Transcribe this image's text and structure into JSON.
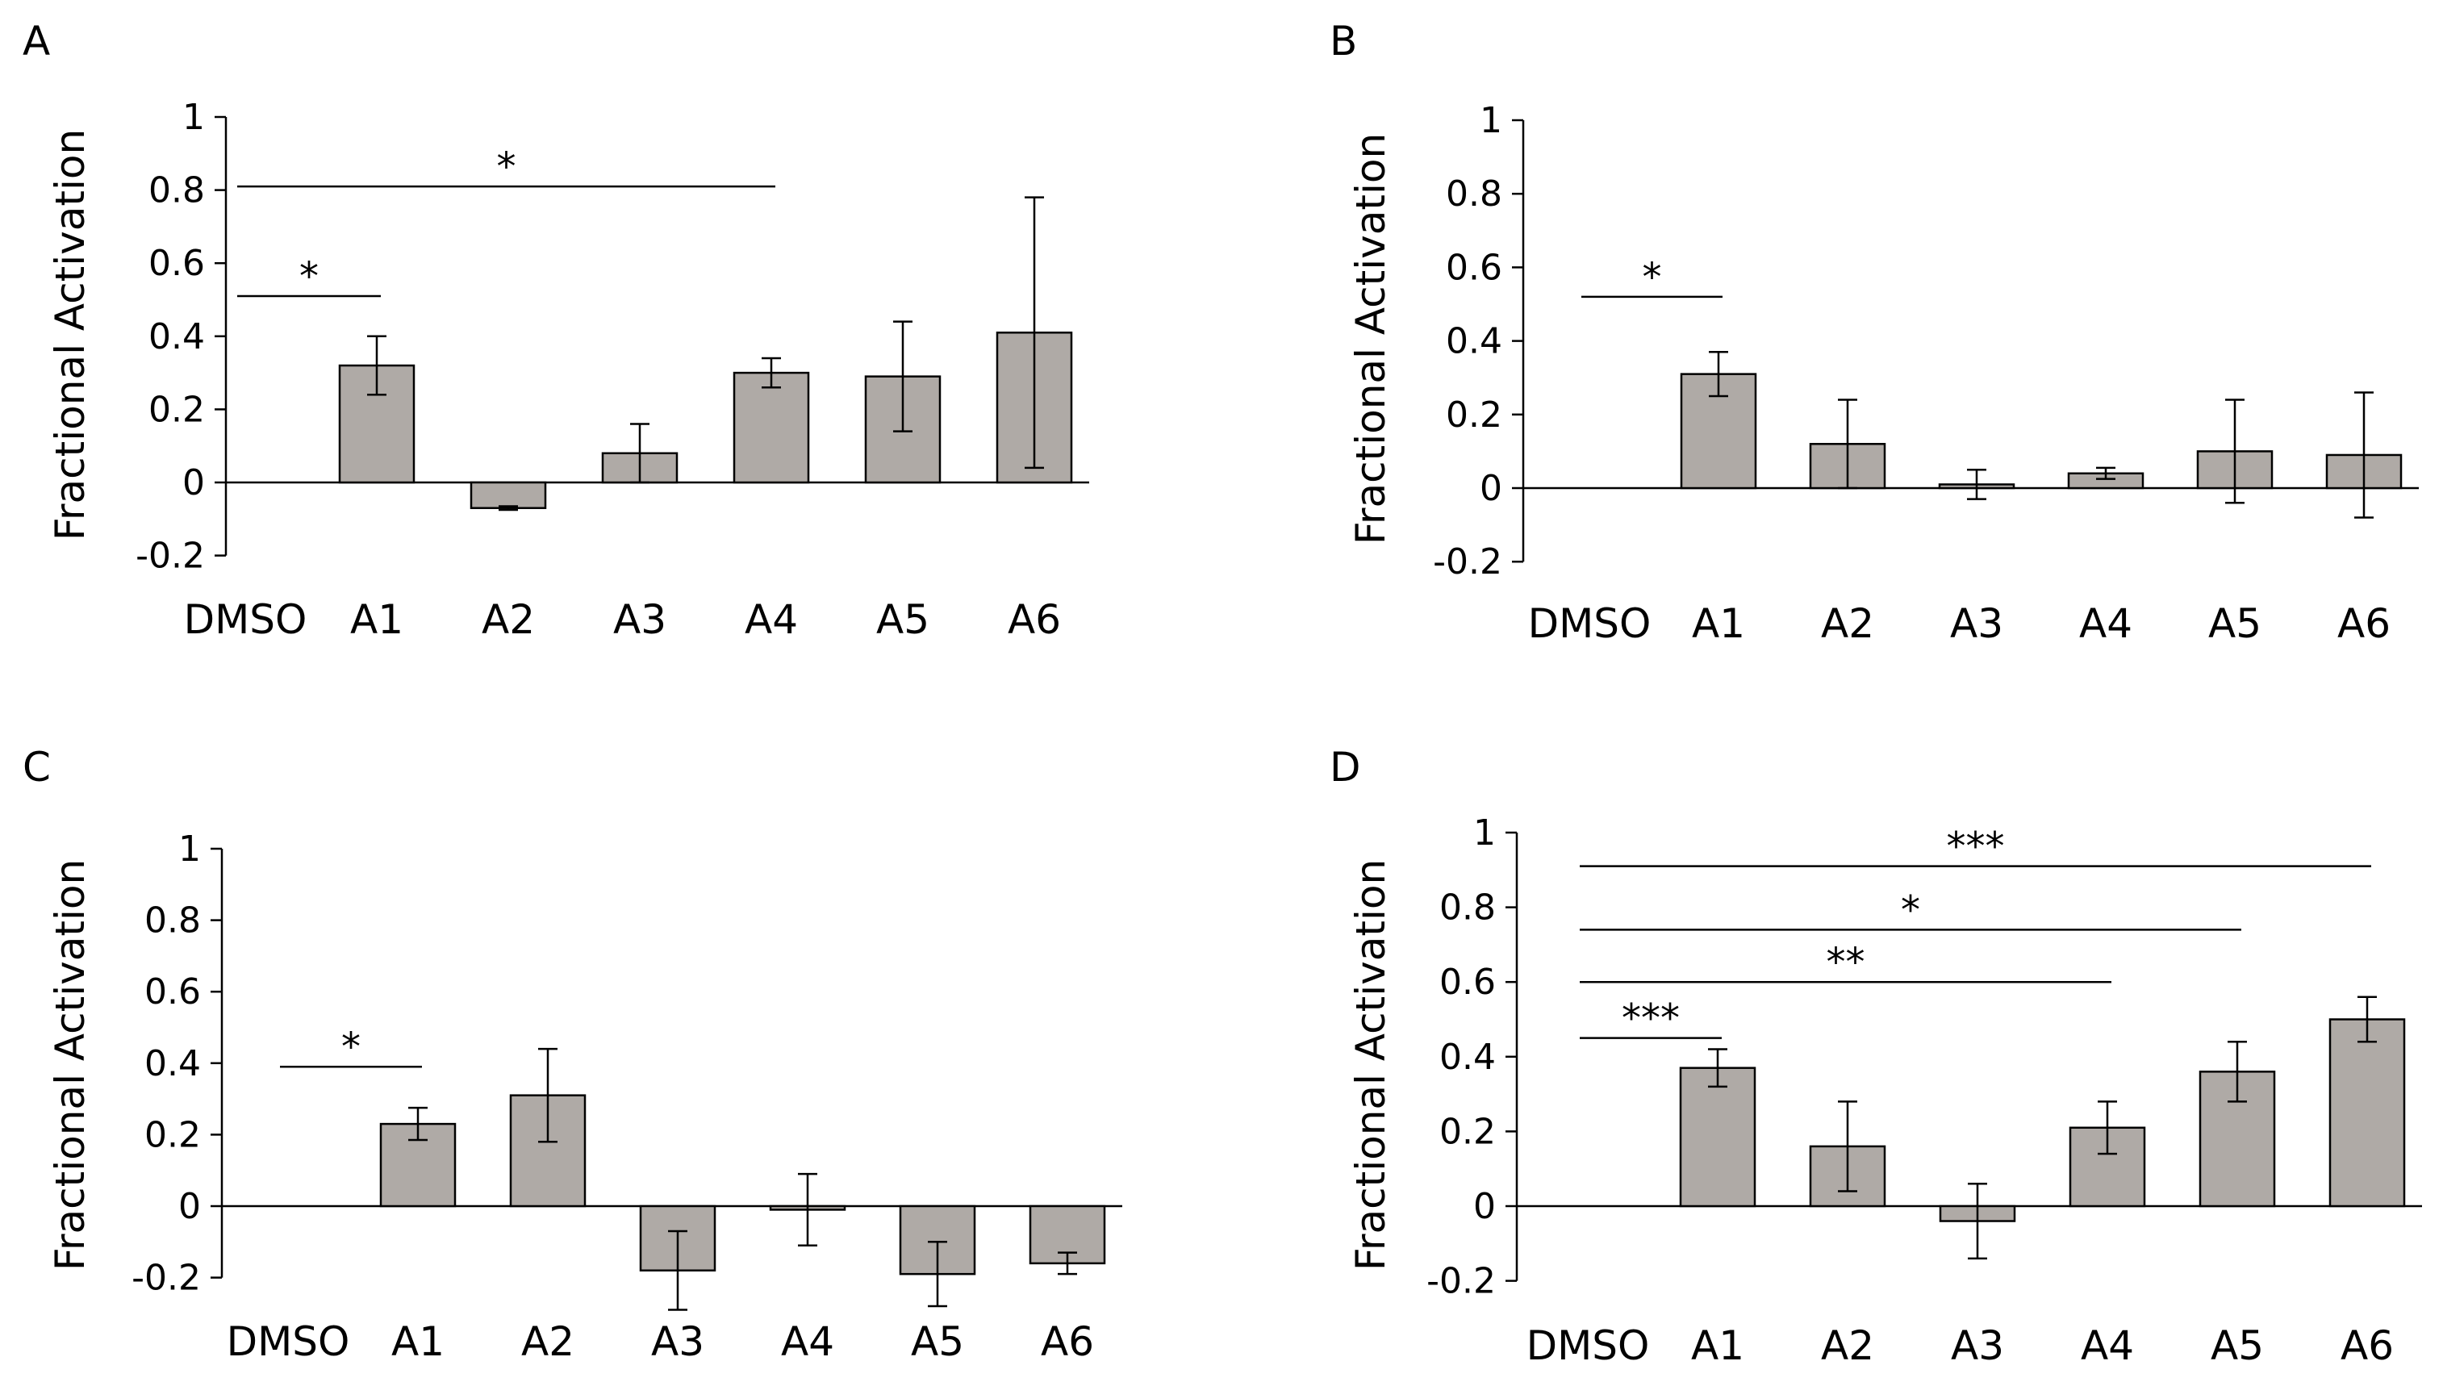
{
  "figure": {
    "background": "#ffffff",
    "bar_fill": "#afaaa6",
    "bar_stroke": "#000000"
  },
  "chart_data": [
    {
      "panel": "A",
      "type": "bar",
      "ylabel": "Fractional Activation",
      "ylim": [
        -0.2,
        1
      ],
      "yticks": [
        -0.2,
        0,
        0.2,
        0.4,
        0.6,
        0.8,
        1
      ],
      "ytick_labels": [
        "-0.2",
        "0",
        "0.2",
        "0.4",
        "0.6",
        "0.8",
        "1"
      ],
      "categories": [
        "DMSO",
        "A1",
        "A2",
        "A3",
        "A4",
        "A5",
        "A6"
      ],
      "values": [
        null,
        0.32,
        -0.07,
        0.08,
        0.3,
        0.29,
        0.41
      ],
      "errors": [
        null,
        0.08,
        0.005,
        0.08,
        0.04,
        0.15,
        0.37
      ],
      "significance": [
        {
          "from": "DMSO",
          "to": "A1",
          "y": 0.51,
          "label": "*"
        },
        {
          "from": "DMSO",
          "to": "A4",
          "y": 0.81,
          "label": "*"
        }
      ]
    },
    {
      "panel": "B",
      "type": "bar",
      "ylabel": "Fractional Activation",
      "ylim": [
        -0.2,
        1
      ],
      "yticks": [
        -0.2,
        0,
        0.2,
        0.4,
        0.6,
        0.8,
        1
      ],
      "ytick_labels": [
        "-0.2",
        "0",
        "0.2",
        "0.4",
        "0.6",
        "0.8",
        "1"
      ],
      "categories": [
        "DMSO",
        "A1",
        "A2",
        "A3",
        "A4",
        "A5",
        "A6"
      ],
      "values": [
        null,
        0.31,
        0.12,
        0.01,
        0.04,
        0.1,
        0.09
      ],
      "errors": [
        null,
        0.06,
        0.12,
        0.04,
        0.015,
        0.14,
        0.17
      ],
      "significance": [
        {
          "from": "DMSO",
          "to": "A1",
          "y": 0.52,
          "label": "*"
        }
      ]
    },
    {
      "panel": "C",
      "type": "bar",
      "ylabel": "Fractional Activation",
      "ylim": [
        -0.2,
        1
      ],
      "yticks": [
        -0.2,
        0,
        0.2,
        0.4,
        0.6,
        0.8,
        1
      ],
      "ytick_labels": [
        "-0.2",
        "0",
        "0.2",
        "0.4",
        "0.6",
        "0.8",
        "1"
      ],
      "categories": [
        "DMSO",
        "A1",
        "A2",
        "A3",
        "A4",
        "A5",
        "A6"
      ],
      "values": [
        null,
        0.23,
        0.31,
        -0.18,
        -0.01,
        -0.19,
        -0.16
      ],
      "errors": [
        null,
        0.045,
        0.13,
        0.11,
        0.1,
        0.09,
        0.03
      ],
      "significance": [
        {
          "from": "DMSO",
          "to": "A1",
          "y": 0.39,
          "label": "*"
        }
      ]
    },
    {
      "panel": "D",
      "type": "bar",
      "ylabel": "Fractional Activation",
      "ylim": [
        -0.2,
        1
      ],
      "yticks": [
        -0.2,
        0,
        0.2,
        0.4,
        0.6,
        0.8,
        1
      ],
      "ytick_labels": [
        "-0.2",
        "0",
        "0.2",
        "0.4",
        "0.6",
        "0.8",
        "1"
      ],
      "categories": [
        "DMSO",
        "A1",
        "A2",
        "A3",
        "A4",
        "A5",
        "A6"
      ],
      "values": [
        null,
        0.37,
        0.16,
        -0.04,
        0.21,
        0.36,
        0.5
      ],
      "errors": [
        null,
        0.05,
        0.12,
        0.1,
        0.07,
        0.08,
        0.06
      ],
      "significance": [
        {
          "from": "DMSO",
          "to": "A1",
          "y": 0.45,
          "label": "***"
        },
        {
          "from": "DMSO",
          "to": "A4",
          "y": 0.6,
          "label": "**"
        },
        {
          "from": "DMSO",
          "to": "A5",
          "y": 0.74,
          "label": "*"
        },
        {
          "from": "DMSO",
          "to": "A6",
          "y": 0.91,
          "label": "***"
        }
      ]
    }
  ]
}
